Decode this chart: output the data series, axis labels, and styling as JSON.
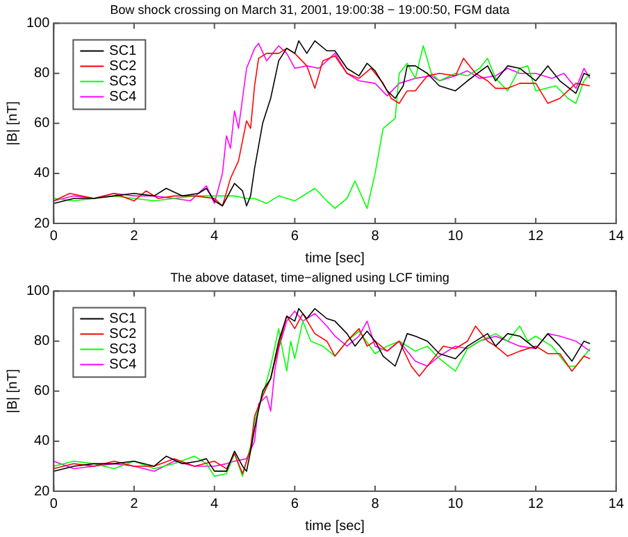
{
  "chart_data": [
    {
      "type": "line",
      "title": "Bow shock crossing on March 31, 2001, 19:00:38 − 19:00:50, FGM data",
      "xlabel": "time [sec]",
      "ylabel": "|B| [nT]",
      "xlim": [
        0,
        14
      ],
      "xticks": [
        0,
        2,
        4,
        6,
        8,
        10,
        12,
        14
      ],
      "ylim": [
        20,
        100
      ],
      "yticks": [
        20,
        40,
        60,
        80,
        100
      ],
      "grid": false,
      "legend": "top left",
      "marker": "none",
      "line_style": "solid",
      "series": [
        {
          "name": "SC1",
          "color": "#000000",
          "x": [
            0,
            0.5,
            1,
            1.5,
            2,
            2.5,
            2.8,
            3.2,
            3.6,
            3.8,
            4.0,
            4.2,
            4.5,
            4.7,
            4.8,
            4.9,
            5.0,
            5.2,
            5.4,
            5.6,
            5.8,
            6.0,
            6.1,
            6.3,
            6.5,
            6.8,
            7.0,
            7.3,
            7.6,
            7.8,
            8.0,
            8.3,
            8.5,
            8.7,
            8.8,
            9.0,
            9.3,
            9.6,
            10.0,
            10.3,
            10.8,
            11.0,
            11.3,
            11.6,
            12.0,
            12.3,
            12.6,
            13.0,
            13.2,
            13.35
          ],
          "values": [
            28,
            30,
            30,
            31,
            32,
            31,
            34,
            31,
            32,
            34,
            29,
            27,
            36,
            33,
            27,
            31,
            42,
            60,
            70,
            85,
            90,
            88,
            93,
            88,
            93,
            89,
            89,
            82,
            79,
            84,
            81,
            73,
            70,
            75,
            83,
            83,
            80,
            75,
            73,
            77,
            83,
            77,
            83,
            82,
            77,
            83,
            77,
            72,
            80,
            79
          ]
        },
        {
          "name": "SC2",
          "color": "#ff0000",
          "x": [
            0,
            0.4,
            1,
            1.5,
            2,
            2.3,
            2.6,
            3.0,
            3.5,
            4.0,
            4.2,
            4.4,
            4.6,
            4.8,
            4.9,
            5.0,
            5.1,
            5.3,
            5.6,
            5.8,
            6.0,
            6.3,
            6.5,
            6.7,
            7.0,
            7.3,
            7.6,
            7.9,
            8.2,
            8.4,
            8.6,
            8.8,
            9.0,
            9.3,
            9.6,
            10.0,
            10.2,
            10.5,
            10.8,
            11.0,
            11.3,
            11.6,
            12.0,
            12.3,
            12.6,
            13.0,
            13.35
          ],
          "values": [
            29,
            32,
            30,
            32,
            29,
            33,
            30,
            31,
            31,
            30,
            27,
            38,
            45,
            61,
            58,
            75,
            86,
            88,
            88,
            90,
            88,
            83,
            74,
            85,
            87,
            80,
            78,
            82,
            76,
            70,
            68,
            73,
            73,
            79,
            80,
            79,
            86,
            80,
            77,
            74,
            74,
            76,
            76,
            68,
            70,
            76,
            75
          ]
        },
        {
          "name": "SC3",
          "color": "#00ff00",
          "x": [
            0,
            0.5,
            1,
            1.5,
            2,
            2.5,
            3.0,
            3.5,
            4.0,
            4.5,
            4.8,
            5.0,
            5.3,
            5.6,
            6.0,
            6.5,
            6.8,
            7.0,
            7.3,
            7.5,
            7.8,
            8.0,
            8.2,
            8.5,
            8.6,
            8.8,
            9.0,
            9.2,
            9.4,
            9.6,
            10.0,
            10.3,
            10.6,
            10.8,
            11.0,
            11.3,
            11.6,
            11.8,
            12.0,
            12.5,
            12.8,
            13.0,
            13.2,
            13.35
          ],
          "values": [
            30,
            29,
            30,
            31,
            30,
            29,
            30,
            31,
            31,
            31,
            30,
            30,
            28,
            31,
            29,
            34,
            29,
            26,
            30,
            37,
            26,
            40,
            58,
            62,
            80,
            84,
            78,
            91,
            80,
            77,
            80,
            79,
            82,
            86,
            78,
            73,
            82,
            83,
            73,
            75,
            70,
            68,
            77,
            80
          ]
        },
        {
          "name": "SC4",
          "color": "#ff00ff",
          "x": [
            0,
            0.5,
            1,
            1.5,
            2,
            2.5,
            3.0,
            3.4,
            3.8,
            4.0,
            4.2,
            4.3,
            4.4,
            4.5,
            4.6,
            4.8,
            5.0,
            5.1,
            5.3,
            5.6,
            5.8,
            6.0,
            6.3,
            6.6,
            7.0,
            7.3,
            7.6,
            8.0,
            8.3,
            8.6,
            9.0,
            9.4,
            9.6,
            10.0,
            10.3,
            10.6,
            11.0,
            11.3,
            11.6,
            12.0,
            12.4,
            12.7,
            13.0,
            13.2,
            13.35
          ],
          "values": [
            29,
            31,
            30,
            32,
            31,
            31,
            30,
            29,
            35,
            28,
            40,
            55,
            50,
            65,
            58,
            82,
            90,
            92,
            85,
            91,
            88,
            82,
            83,
            82,
            88,
            80,
            77,
            76,
            71,
            76,
            78,
            79,
            77,
            79,
            81,
            78,
            79,
            82,
            80,
            80,
            78,
            80,
            74,
            82,
            78
          ]
        }
      ]
    },
    {
      "type": "line",
      "title": "The above dataset, time−aligned using LCF timing",
      "xlabel": "time [sec]",
      "ylabel": "|B| [nT]",
      "xlim": [
        0,
        14
      ],
      "xticks": [
        0,
        2,
        4,
        6,
        8,
        10,
        12,
        14
      ],
      "ylim": [
        20,
        100
      ],
      "yticks": [
        20,
        40,
        60,
        80,
        100
      ],
      "grid": false,
      "legend": "top left",
      "marker": "none",
      "line_style": "solid",
      "series": [
        {
          "name": "SC1",
          "color": "#000000",
          "x": [
            0,
            0.5,
            1,
            1.5,
            2,
            2.5,
            2.8,
            3.2,
            3.6,
            3.8,
            4.0,
            4.3,
            4.5,
            4.7,
            4.8,
            4.9,
            5.0,
            5.2,
            5.4,
            5.6,
            5.8,
            6.0,
            6.1,
            6.3,
            6.5,
            6.8,
            7.0,
            7.3,
            7.5,
            7.8,
            8.0,
            8.2,
            8.5,
            8.8,
            9.0,
            9.3,
            9.6,
            10.0,
            10.3,
            10.8,
            11.0,
            11.3,
            11.6,
            12.0,
            12.3,
            12.6,
            12.9,
            13.2,
            13.35
          ],
          "values": [
            28,
            30,
            31,
            31,
            32,
            30,
            34,
            31,
            32,
            33,
            28,
            28,
            36,
            30,
            28,
            36,
            45,
            60,
            65,
            80,
            90,
            88,
            93,
            89,
            93,
            89,
            88,
            83,
            78,
            84,
            80,
            74,
            70,
            83,
            82,
            80,
            75,
            73,
            78,
            83,
            78,
            83,
            82,
            77,
            83,
            78,
            72,
            80,
            79
          ]
        },
        {
          "name": "SC2",
          "color": "#ff0000",
          "x": [
            0,
            0.5,
            1,
            1.5,
            2,
            2.5,
            3.0,
            3.5,
            4.0,
            4.3,
            4.5,
            4.7,
            4.9,
            5.0,
            5.2,
            5.4,
            5.6,
            5.8,
            6.0,
            6.2,
            6.5,
            6.8,
            7.0,
            7.3,
            7.6,
            7.8,
            8.0,
            8.3,
            8.6,
            8.9,
            9.1,
            9.4,
            9.7,
            10.0,
            10.3,
            10.5,
            10.8,
            11.0,
            11.3,
            11.6,
            12.0,
            12.3,
            12.6,
            12.9,
            13.2,
            13.35
          ],
          "values": [
            29,
            31,
            30,
            32,
            30,
            30,
            33,
            30,
            32,
            29,
            35,
            27,
            37,
            50,
            58,
            65,
            78,
            90,
            85,
            91,
            83,
            80,
            74,
            80,
            85,
            78,
            80,
            76,
            80,
            70,
            66,
            72,
            78,
            77,
            80,
            86,
            80,
            78,
            74,
            76,
            78,
            75,
            75,
            68,
            74,
            73
          ]
        },
        {
          "name": "SC3",
          "color": "#00ff00",
          "x": [
            0,
            0.5,
            1,
            1.5,
            2,
            2.5,
            3.0,
            3.5,
            3.8,
            4.0,
            4.3,
            4.5,
            4.7,
            4.9,
            5.0,
            5.2,
            5.4,
            5.6,
            5.7,
            5.8,
            5.9,
            6.0,
            6.2,
            6.4,
            6.7,
            7.0,
            7.3,
            7.6,
            8.0,
            8.3,
            8.6,
            9.0,
            9.3,
            9.6,
            10.0,
            10.3,
            10.6,
            11.0,
            11.3,
            11.6,
            11.8,
            12.0,
            12.4,
            12.8,
            13.0,
            13.35
          ],
          "values": [
            30,
            32,
            31,
            29,
            32,
            29,
            31,
            34,
            31,
            26,
            27,
            35,
            26,
            38,
            48,
            58,
            70,
            85,
            76,
            68,
            80,
            73,
            88,
            80,
            78,
            74,
            80,
            84,
            75,
            78,
            80,
            76,
            78,
            73,
            68,
            77,
            80,
            83,
            80,
            86,
            80,
            82,
            78,
            70,
            70,
            77
          ]
        },
        {
          "name": "SC4",
          "color": "#ff00ff",
          "x": [
            0,
            0.5,
            1,
            1.5,
            2,
            2.5,
            3.0,
            3.5,
            4.0,
            4.3,
            4.5,
            4.8,
            5.0,
            5.1,
            5.3,
            5.4,
            5.5,
            5.6,
            5.8,
            6.0,
            6.2,
            6.5,
            6.8,
            7.0,
            7.3,
            7.6,
            7.8,
            8.0,
            8.3,
            8.6,
            9.0,
            9.3,
            9.6,
            10.0,
            10.3,
            10.6,
            11.0,
            11.3,
            11.6,
            12.0,
            12.3,
            12.6,
            13.0,
            13.35
          ],
          "values": [
            32,
            29,
            30,
            31,
            30,
            28,
            32,
            30,
            30,
            31,
            32,
            33,
            40,
            55,
            58,
            52,
            68,
            77,
            88,
            92,
            88,
            91,
            86,
            82,
            78,
            82,
            88,
            78,
            76,
            80,
            72,
            70,
            74,
            78,
            77,
            80,
            82,
            80,
            78,
            77,
            83,
            82,
            80,
            76
          ]
        }
      ]
    }
  ]
}
